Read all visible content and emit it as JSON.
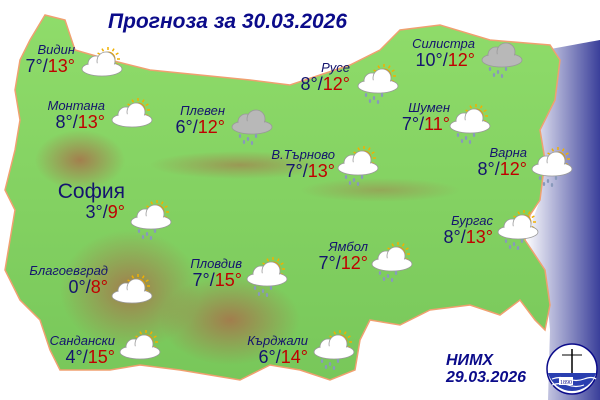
{
  "title": "Прогноза за 30.03.2026",
  "colors": {
    "min_temp": "#14146e",
    "max_temp": "#c00000",
    "land": "#7ccf5a",
    "sea": "#3a3f9a"
  },
  "cities": [
    {
      "name": "Видин",
      "min": "7°",
      "max": "13°",
      "icon": "partly-cloudy"
    },
    {
      "name": "Монтана",
      "min": "8°",
      "max": "13°",
      "icon": "partly-cloudy"
    },
    {
      "name": "Плевен",
      "min": "6°",
      "max": "12°",
      "icon": "rain"
    },
    {
      "name": "Русе",
      "min": "8°",
      "max": "12°",
      "icon": "partly-cloudy-rain"
    },
    {
      "name": "Силистра",
      "min": "10°",
      "max": "12°",
      "icon": "rain"
    },
    {
      "name": "Шумен",
      "min": "7°",
      "max": "11°",
      "icon": "partly-cloudy-rain"
    },
    {
      "name": "В.Търново",
      "min": "7°",
      "max": "13°",
      "icon": "partly-cloudy-rain"
    },
    {
      "name": "Варна",
      "min": "8°",
      "max": "12°",
      "icon": "partly-cloudy-rain"
    },
    {
      "name": "София",
      "min": "3°",
      "max": "9°",
      "icon": "partly-cloudy-rain"
    },
    {
      "name": "Бургас",
      "min": "8°",
      "max": "13°",
      "icon": "partly-cloudy-rain"
    },
    {
      "name": "Ямбол",
      "min": "7°",
      "max": "12°",
      "icon": "partly-cloudy-rain"
    },
    {
      "name": "Пловдив",
      "min": "7°",
      "max": "15°",
      "icon": "partly-cloudy-rain"
    },
    {
      "name": "Благоевград",
      "min": "0°",
      "max": "8°",
      "icon": "partly-cloudy"
    },
    {
      "name": "Сандански",
      "min": "4°",
      "max": "15°",
      "icon": "partly-cloudy"
    },
    {
      "name": "Кърджали",
      "min": "6°",
      "max": "14°",
      "icon": "partly-cloudy-rain"
    }
  ],
  "footer": {
    "agency": "НИМХ",
    "issued": "29.03.2026",
    "logo_text": "1890"
  }
}
